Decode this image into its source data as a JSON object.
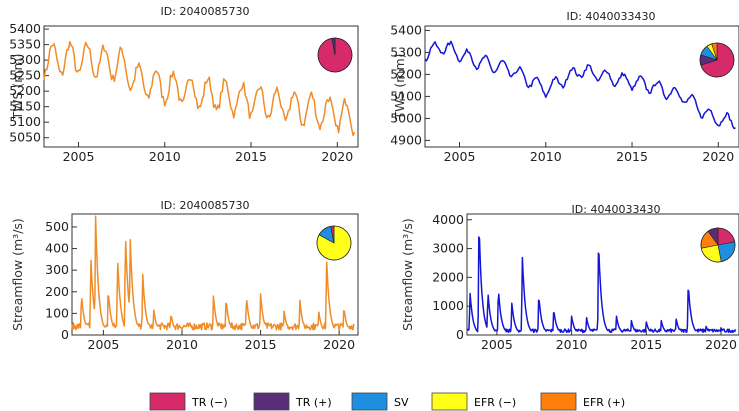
{
  "chart_data": [
    {
      "type": "line",
      "title": "ID: 2040085730",
      "ylabel": "TWS (mm)",
      "color": "#f08c28",
      "xlim": [
        2003,
        2021.2
      ],
      "ylim": [
        5020,
        5410
      ],
      "xticks": [
        2005,
        2010,
        2015,
        2020
      ],
      "yticks": [
        5050,
        5100,
        5150,
        5200,
        5250,
        5300,
        5350,
        5400
      ],
      "mean_trend": [
        [
          2003.0,
          5300
        ],
        [
          2005.0,
          5305
        ],
        [
          2007.5,
          5285
        ],
        [
          2008.5,
          5230
        ],
        [
          2012.0,
          5195
        ],
        [
          2016.0,
          5160
        ],
        [
          2019.0,
          5135
        ],
        [
          2021.0,
          5115
        ]
      ],
      "seasonal_amplitude": 50,
      "pie": [
        {
          "category": "TR (−)",
          "share": 0.97
        },
        {
          "category": "TR (+)",
          "share": 0.03
        }
      ]
    },
    {
      "type": "line",
      "title": "ID: 4040033430",
      "ylabel": "TWS (mm)",
      "color": "#1515d8",
      "xlim": [
        2003,
        2021.2
      ],
      "ylim": [
        4870,
        5420
      ],
      "xticks": [
        2005,
        2010,
        2015,
        2020
      ],
      "yticks": [
        4900,
        5000,
        5100,
        5200,
        5300,
        5400
      ],
      "mean_trend": [
        [
          2003.0,
          5290
        ],
        [
          2004.0,
          5330
        ],
        [
          2006.0,
          5260
        ],
        [
          2008.0,
          5220
        ],
        [
          2010.0,
          5130
        ],
        [
          2012.0,
          5220
        ],
        [
          2014.0,
          5180
        ],
        [
          2016.0,
          5150
        ],
        [
          2018.0,
          5100
        ],
        [
          2019.5,
          5010
        ],
        [
          2021.0,
          4980
        ]
      ],
      "seasonal_amplitude": 30,
      "pie": [
        {
          "category": "TR (−)",
          "share": 0.7
        },
        {
          "category": "TR (+)",
          "share": 0.1
        },
        {
          "category": "SV",
          "share": 0.1
        },
        {
          "category": "EFR (−)",
          "share": 0.05
        },
        {
          "category": "EFR (+)",
          "share": 0.05
        }
      ]
    },
    {
      "type": "line",
      "title": "ID: 2040085730",
      "ylabel": "Streamflow (m³/s)",
      "color": "#f08c28",
      "xlim": [
        2003,
        2021.2
      ],
      "ylim": [
        0,
        560
      ],
      "xticks": [
        2005,
        2010,
        2015,
        2020
      ],
      "yticks": [
        0,
        100,
        200,
        300,
        400,
        500
      ],
      "peaks": [
        [
          2003.6,
          190
        ],
        [
          2004.2,
          360
        ],
        [
          2004.5,
          550
        ],
        [
          2005.3,
          210
        ],
        [
          2005.9,
          360
        ],
        [
          2006.4,
          470
        ],
        [
          2006.7,
          460
        ],
        [
          2007.5,
          280
        ],
        [
          2008.2,
          120
        ],
        [
          2009.3,
          100
        ],
        [
          2012.0,
          180
        ],
        [
          2012.8,
          170
        ],
        [
          2014.1,
          180
        ],
        [
          2015.0,
          190
        ],
        [
          2016.5,
          110
        ],
        [
          2017.5,
          160
        ],
        [
          2018.7,
          110
        ],
        [
          2019.2,
          350
        ],
        [
          2020.3,
          130
        ]
      ],
      "base_level": 40,
      "pie": [
        {
          "category": "EFR (−)",
          "share": 0.83
        },
        {
          "category": "SV",
          "share": 0.14
        },
        {
          "category": "TR (−)",
          "share": 0.03
        }
      ]
    },
    {
      "type": "line",
      "title": "ID: 4040033430",
      "ylabel": "Streamflow (m³/s)",
      "color": "#1515d8",
      "xlim": [
        2003,
        2021.2
      ],
      "ylim": [
        0,
        4200
      ],
      "xticks": [
        2005,
        2010,
        2015,
        2020
      ],
      "yticks": [
        0,
        1000,
        2000,
        3000,
        4000
      ],
      "peaks": [
        [
          2003.2,
          1500
        ],
        [
          2003.8,
          3950
        ],
        [
          2004.4,
          1500
        ],
        [
          2005.1,
          1600
        ],
        [
          2006.0,
          1100
        ],
        [
          2006.7,
          2800
        ],
        [
          2007.8,
          1400
        ],
        [
          2008.8,
          900
        ],
        [
          2010.0,
          650
        ],
        [
          2011.0,
          600
        ],
        [
          2011.8,
          3300
        ],
        [
          2013.0,
          650
        ],
        [
          2014.0,
          500
        ],
        [
          2015.0,
          450
        ],
        [
          2016.0,
          500
        ],
        [
          2017.0,
          550
        ],
        [
          2017.8,
          1800
        ],
        [
          2019.0,
          300
        ],
        [
          2020.0,
          250
        ],
        [
          2021.0,
          650
        ]
      ],
      "base_level": 150,
      "pie": [
        {
          "category": "TR (−)",
          "share": 0.22
        },
        {
          "category": "SV",
          "share": 0.25
        },
        {
          "category": "EFR (−)",
          "share": 0.25
        },
        {
          "category": "EFR (+)",
          "share": 0.18
        },
        {
          "category": "TR (+)",
          "share": 0.1
        }
      ]
    }
  ],
  "legend": {
    "placement": "bottom",
    "items": [
      {
        "label": "TR (−)",
        "color": "#d62a6a"
      },
      {
        "label": "TR (+)",
        "color": "#5a2d7a"
      },
      {
        "label": "SV",
        "color": "#1e8ee0"
      },
      {
        "label": "EFR (−)",
        "color": "#ffff1a"
      },
      {
        "label": "EFR (+)",
        "color": "#ff7f0e"
      }
    ]
  }
}
